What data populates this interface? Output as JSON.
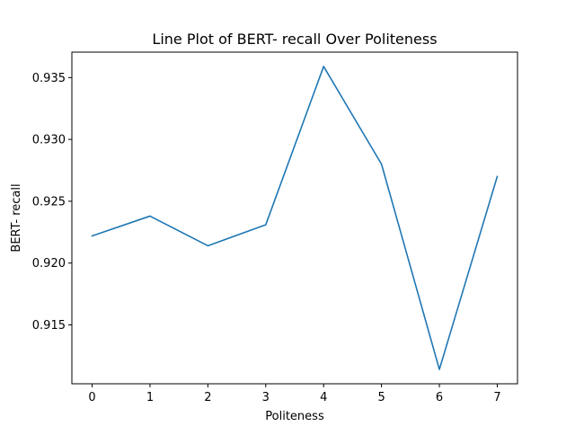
{
  "chart_data": {
    "type": "line",
    "title": "Line Plot of BERT- recall Over Politeness",
    "xlabel": "Politeness",
    "ylabel": "BERT- recall",
    "x": [
      0,
      1,
      2,
      3,
      4,
      5,
      6,
      7
    ],
    "series": [
      {
        "values": [
          0.9222,
          0.9238,
          0.9214,
          0.9231,
          0.9359,
          0.928,
          0.9114,
          0.927
        ],
        "color": "#1f77b4"
      }
    ],
    "xticks": [
      "0",
      "1",
      "2",
      "3",
      "4",
      "5",
      "6",
      "7"
    ],
    "yticks": [
      "0.915",
      "0.920",
      "0.925",
      "0.930",
      "0.935"
    ],
    "xlim": [
      -0.35,
      7.35
    ],
    "ylim": [
      0.91024,
      0.93706
    ],
    "grid": false,
    "legend": false
  }
}
